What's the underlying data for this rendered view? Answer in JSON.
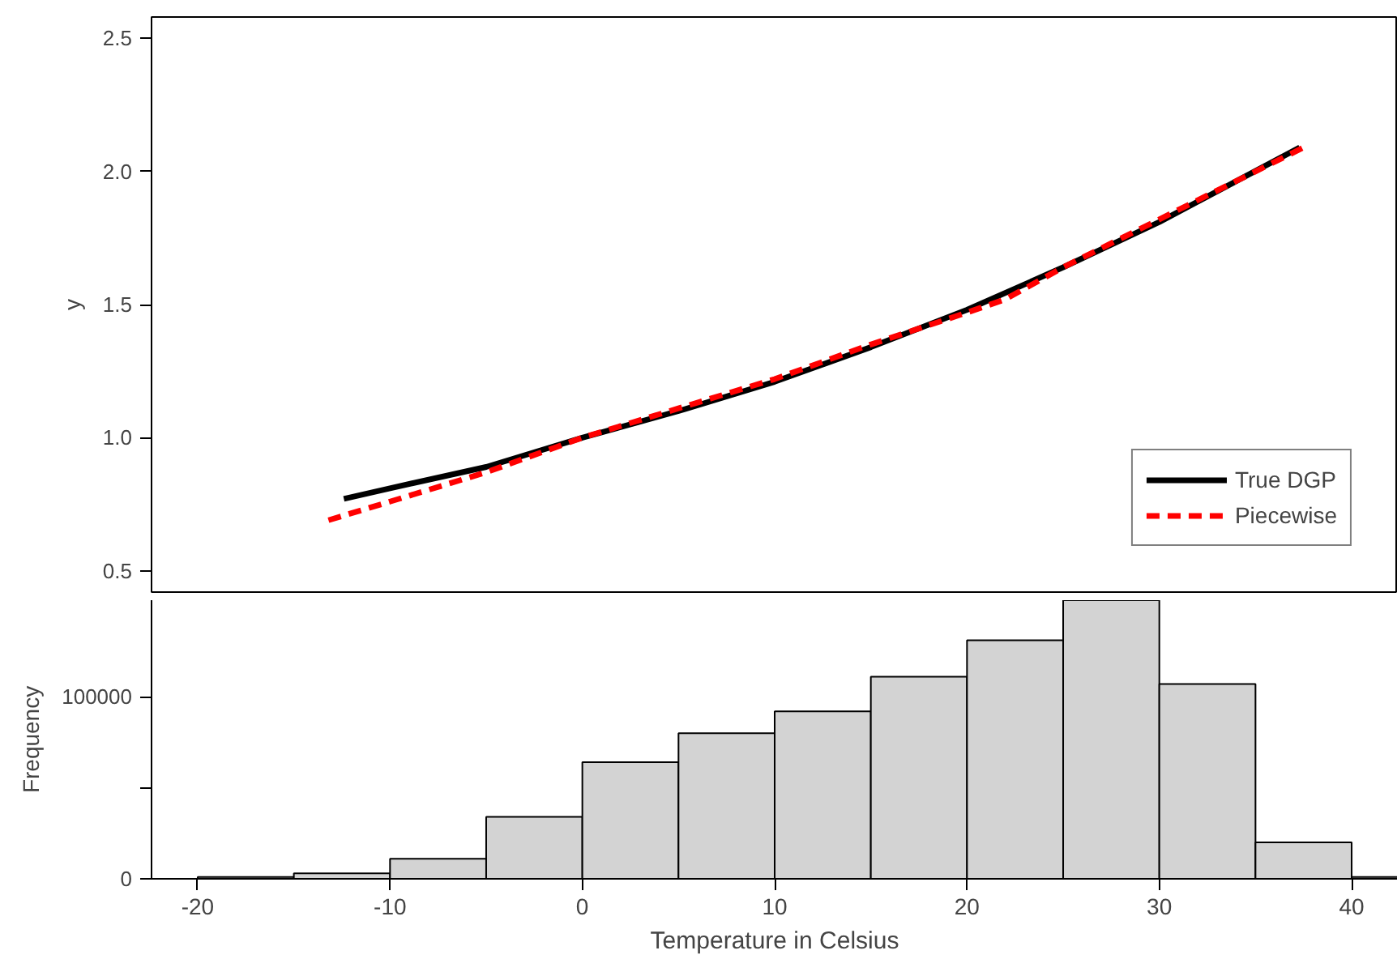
{
  "chart_data": [
    {
      "type": "line",
      "ylabel": "y",
      "xlim": [
        -22.4,
        42.4
      ],
      "ylim": [
        0.42,
        2.58
      ],
      "yticks": [
        0.5,
        {
          "value": 1.0,
          "label": "1.0"
        },
        1.5,
        {
          "value": 2.0,
          "label": "2.0"
        },
        2.5
      ],
      "tick_labels": "y",
      "legend": "bottom right",
      "grid": false,
      "series": [
        {
          "name": "True DGP",
          "color": "#000000",
          "line_style": "solid",
          "x": [
            -12.4,
            -10,
            -5,
            0,
            5,
            10,
            15,
            20,
            25,
            30,
            37.3
          ],
          "values": [
            0.77,
            0.81,
            0.89,
            1.0,
            1.1,
            1.21,
            1.34,
            1.48,
            1.64,
            1.81,
            2.09
          ]
        },
        {
          "name": "Piecewise",
          "color": "#ff0000",
          "line_style": "dashed",
          "x": [
            -13.2,
            -10,
            -5,
            0,
            5,
            10,
            15,
            20,
            22,
            25,
            30,
            37.5
          ],
          "values": [
            0.69,
            0.76,
            0.87,
            1.0,
            1.11,
            1.22,
            1.35,
            1.47,
            1.52,
            1.64,
            1.82,
            2.09
          ]
        }
      ]
    },
    {
      "type": "histogram",
      "xlabel": "Temperature in Celsius",
      "ylabel": "Frequency",
      "color": "#d3d3d3",
      "xlim": [
        -22.4,
        42.4
      ],
      "xticks": [
        -20,
        -10,
        0,
        10,
        20,
        30,
        40
      ],
      "ylim": [
        0,
        153000
      ],
      "yticks": [
        0,
        {
          "value": 50000,
          "label": null
        },
        100000
      ],
      "grid": false,
      "bins": [
        -20,
        -15,
        -10,
        -5,
        0,
        5,
        10,
        15,
        20,
        25,
        30,
        35,
        40,
        45
      ],
      "values": [
        1000,
        3000,
        11000,
        34000,
        64000,
        80000,
        92000,
        111000,
        131000,
        153000,
        107000,
        20000,
        1000
      ]
    }
  ]
}
